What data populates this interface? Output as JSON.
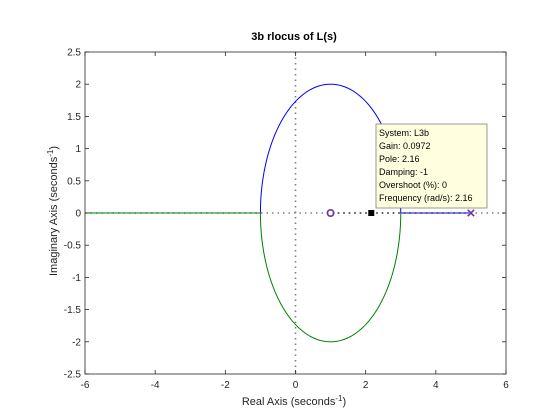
{
  "figure": {
    "title": "3b rlocus of L(s)",
    "xlabel": "Real Axis (seconds",
    "ylabel": "Imaginary Axis (seconds",
    "label_exp": "-1",
    "label_close": ")"
  },
  "chart_data": {
    "type": "line",
    "title": "3b rlocus of L(s)",
    "xlabel": "Real Axis (seconds-1)",
    "ylabel": "Imaginary Axis (seconds-1)",
    "xlim": [
      -6,
      6
    ],
    "ylim": [
      -2.5,
      2.5
    ],
    "xticks": [
      -6,
      -4,
      -2,
      0,
      2,
      4,
      6
    ],
    "yticks": [
      -2.5,
      -2,
      -1.5,
      -1,
      -0.5,
      0,
      0.5,
      1,
      1.5,
      2,
      2.5
    ],
    "xtick_labels": [
      "-6",
      "-4",
      "-2",
      "0",
      "2",
      "4",
      "6"
    ],
    "ytick_labels": [
      "-2.5",
      "-2",
      "-1.5",
      "-1",
      "-0.5",
      "0",
      "0.5",
      "1",
      "1.5",
      "2",
      "2.5"
    ],
    "grid": false,
    "branches": [
      {
        "color": "#0000ff",
        "segments": [
          {
            "kind": "line",
            "points": [
              [
                -1,
                0
              ],
              [
                -6,
                0
              ]
            ]
          },
          {
            "kind": "ellipse_arc",
            "center": [
              1,
              0
            ],
            "rx": 2,
            "ry": 2,
            "half": "upper"
          },
          {
            "kind": "line",
            "points": [
              [
                3,
                0
              ],
              [
                4.95,
                0
              ]
            ]
          }
        ]
      },
      {
        "color": "#008000",
        "segments": [
          {
            "kind": "line",
            "points": [
              [
                -6,
                0
              ],
              [
                -1,
                0
              ]
            ]
          },
          {
            "kind": "ellipse_arc",
            "center": [
              1,
              0
            ],
            "rx": 2,
            "ry": 2,
            "half": "lower"
          }
        ]
      }
    ],
    "poles": [
      [
        5,
        0
      ]
    ],
    "zeros": [
      [
        1,
        0
      ]
    ],
    "pole_zero_color": "#7030a0",
    "selected_point": [
      2.16,
      0
    ],
    "datatip": {
      "lines": [
        "System: L3b",
        "Gain: 0.0972",
        "Pole: 2.16",
        "Damping: -1",
        "Overshoot (%): 0",
        "Frequency (rad/s): 2.16"
      ],
      "background": "#ffffe0"
    }
  }
}
